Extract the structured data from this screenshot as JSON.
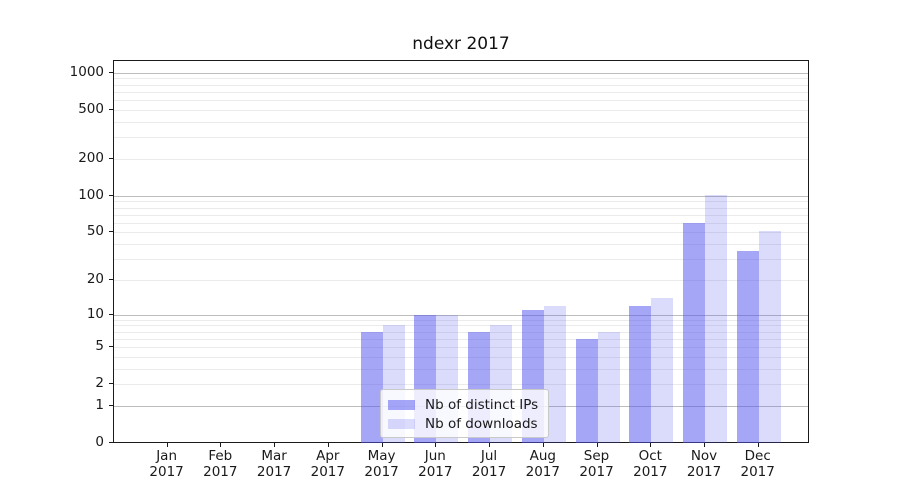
{
  "chart_data": {
    "type": "bar",
    "title": "ndexr 2017",
    "categories": [
      "Jan 2017",
      "Feb 2017",
      "Mar 2017",
      "Apr 2017",
      "May 2017",
      "Jun 2017",
      "Jul 2017",
      "Aug 2017",
      "Sep 2017",
      "Oct 2017",
      "Nov 2017",
      "Dec 2017"
    ],
    "series": [
      {
        "name": "Nb of distinct IPs",
        "color": "rgba(85,85,240,0.52)",
        "solid_color": "#a9a9f8",
        "values": [
          0,
          0,
          0,
          0,
          7,
          10,
          7,
          11,
          6,
          12,
          60,
          35
        ]
      },
      {
        "name": "Nb of downloads",
        "color": "rgba(85,85,240,0.21)",
        "solid_color": "#dbdbfa",
        "values": [
          0,
          0,
          0,
          0,
          8,
          10,
          8,
          12,
          7,
          14,
          102,
          51
        ]
      }
    ],
    "xlabel": "",
    "ylabel": "",
    "yscale": "symlog",
    "ylim": [
      0,
      1270
    ],
    "y_ticks": [
      0,
      1,
      2,
      5,
      10,
      20,
      50,
      100,
      200,
      500,
      1000
    ],
    "grid_major": [
      1,
      10,
      100,
      1000
    ],
    "grid_minor": [
      2,
      3,
      4,
      5,
      6,
      7,
      8,
      9,
      20,
      30,
      40,
      50,
      60,
      70,
      80,
      90,
      200,
      300,
      400,
      500,
      600,
      700,
      800,
      900
    ],
    "legend_position": "lower center",
    "grid": "on"
  }
}
